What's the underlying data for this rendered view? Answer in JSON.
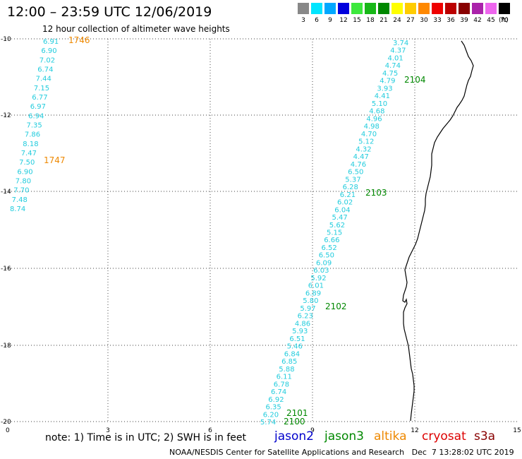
{
  "header": {
    "title": "12:00 – 23:59 UTC 12/06/2019",
    "subtitle": "12 hour collection of altimeter wave heights"
  },
  "color_scale": {
    "unit": "(ft)",
    "items": [
      {
        "label": "3",
        "color": "#888888"
      },
      {
        "label": "6",
        "color": "#00e5ff"
      },
      {
        "label": "9",
        "color": "#00a8ff"
      },
      {
        "label": "12",
        "color": "#0000dd"
      },
      {
        "label": "15",
        "color": "#3ce83c"
      },
      {
        "label": "18",
        "color": "#18b818"
      },
      {
        "label": "21",
        "color": "#008800"
      },
      {
        "label": "24",
        "color": "#ffff00"
      },
      {
        "label": "27",
        "color": "#ffcc00"
      },
      {
        "label": "30",
        "color": "#ff8800"
      },
      {
        "label": "33",
        "color": "#ee0000"
      },
      {
        "label": "36",
        "color": "#bb0000"
      },
      {
        "label": "39",
        "color": "#880000"
      },
      {
        "label": "42",
        "color": "#aa22aa"
      },
      {
        "label": "45",
        "color": "#ee66ee"
      },
      {
        "label": "70",
        "color": "#000000"
      }
    ]
  },
  "map": {
    "x_ticks": [
      "0",
      "3",
      "6",
      "9",
      "12",
      "15"
    ],
    "y_ticks": [
      "-10",
      "-12",
      "-14",
      "-16",
      "-18",
      "-20"
    ],
    "colors": {
      "cyan": "#22ccdd",
      "jason3": "#008800",
      "altika": "#ee8800",
      "jason2": "#0000cc",
      "cryosat": "#dd0000",
      "s3a": "#880000"
    }
  },
  "track_left": {
    "values": [
      "6.91",
      "6.90",
      "7.02",
      "6.74",
      "7.44",
      "7.15",
      "6.77",
      "6.97",
      "6.94",
      "7.35",
      "7.86",
      "8.18",
      "7.47",
      "7.50",
      "6.90",
      "7.80",
      "7.70",
      "7.48",
      "8.74"
    ],
    "time_labels": [
      {
        "text": "1746",
        "satellite": "altika"
      },
      {
        "text": "1747",
        "satellite": "altika"
      }
    ]
  },
  "track_right": {
    "values": [
      "3.74",
      "4.37",
      "4.01",
      "4.74",
      "4.75",
      "4.79",
      "3.93",
      "4.41",
      "5.10",
      "4.68",
      "4.96",
      "4.98",
      "4.70",
      "5.12",
      "4.32",
      "4.47",
      "4.76",
      "6.50",
      "5.37",
      "6.28",
      "6.21",
      "6.02",
      "6.04",
      "5.47",
      "5.62",
      "5.15",
      "6.66",
      "6.52",
      "6.50",
      "6.09",
      "6.03",
      "5.92",
      "6.01",
      "6.89",
      "5.80",
      "5.97",
      "6.23",
      "4.86",
      "5.93",
      "6.51",
      "5.46",
      "6.84",
      "6.85",
      "5.88",
      "6.11",
      "6.78",
      "6.74",
      "6.92",
      "6.35",
      "6.20",
      "5.74"
    ],
    "time_labels": [
      {
        "text": "2104",
        "satellite": "jason3"
      },
      {
        "text": "2103",
        "satellite": "jason3"
      },
      {
        "text": "2102",
        "satellite": "jason3"
      },
      {
        "text": "2101",
        "satellite": "jason3"
      },
      {
        "text": "2100",
        "satellite": "jason3"
      }
    ]
  },
  "legend": {
    "note": "note: 1) Time is in UTC; 2) SWH is in feet",
    "satellites": [
      {
        "name": "jason2",
        "color": "#0000cc"
      },
      {
        "name": "jason3",
        "color": "#008800"
      },
      {
        "name": "altika",
        "color": "#ee8800"
      },
      {
        "name": "cryosat",
        "color": "#dd0000"
      },
      {
        "name": "s3a",
        "color": "#880000"
      }
    ]
  },
  "footer": {
    "credit": "NOAA/NESDIS Center for Satellite Applications and Research",
    "timestamp": "Dec  7 13:28:02 UTC 2019"
  }
}
